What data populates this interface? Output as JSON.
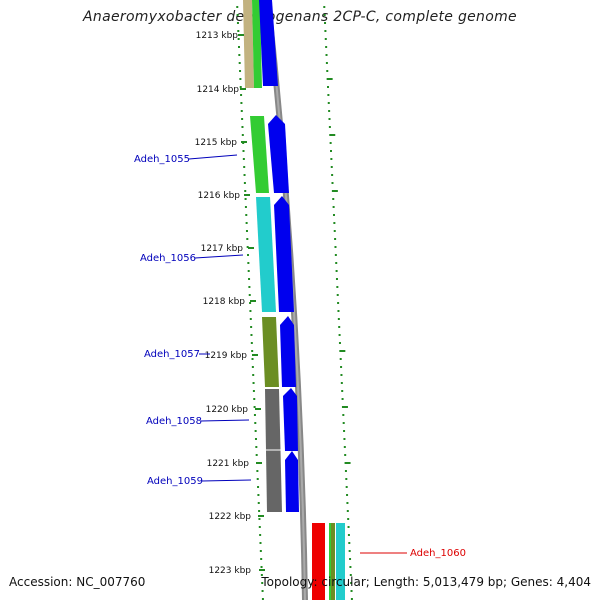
{
  "header": {
    "title": "Anaeromyxobacter dehalogenans 2CP-C, complete genome"
  },
  "footer": {
    "accession": "Accession: NC_007760",
    "stats": "Topology: circular; Length: 5,013,479 bp; Genes: 4,404"
  },
  "ticks": [
    "1213 kbp",
    "1214 kbp",
    "1215 kbp",
    "1216 kbp",
    "1217 kbp",
    "1218 kbp",
    "1219 kbp",
    "1220 kbp",
    "1221 kbp",
    "1222 kbp",
    "1223 kbp"
  ],
  "genes": [
    {
      "label": "Adeh_1055",
      "color": "#0000bb"
    },
    {
      "label": "Adeh_1056",
      "color": "#0000bb"
    },
    {
      "label": "Adeh_1057",
      "color": "#0000bb"
    },
    {
      "label": "Adeh_1058",
      "color": "#0000bb"
    },
    {
      "label": "Adeh_1059",
      "color": "#0000bb"
    },
    {
      "label": "Adeh_1060",
      "color": "#dd0000"
    }
  ],
  "colors": {
    "cds": "#0000ee",
    "cog_green": "#33cc33",
    "cog_cyan": "#22cccc",
    "cog_olive": "#6b8e23",
    "cog_gray": "#666666",
    "cog_tan": "#c2b280",
    "backbone": "#888888",
    "gc_dots": "#228b22",
    "rna_red": "#ee0000"
  }
}
